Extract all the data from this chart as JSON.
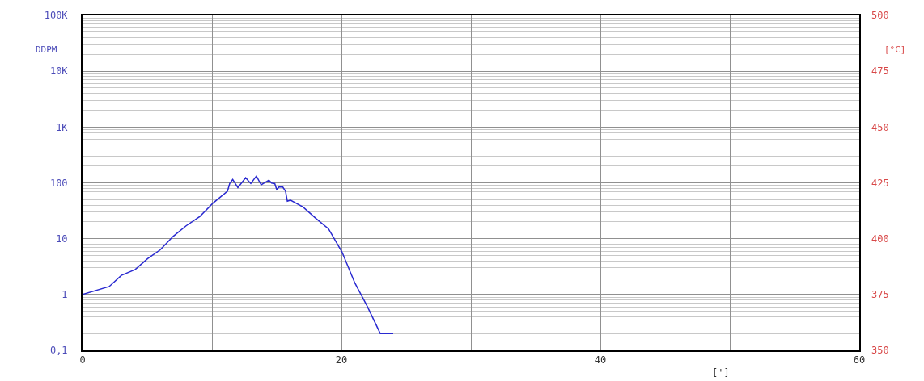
{
  "chart_data": {
    "type": "line",
    "ylabel": "DDPM",
    "y2label": "[°C]",
    "xlabel": "[']",
    "x": [
      0,
      2.06,
      3.0,
      4.07,
      5.03,
      6.0,
      7.0,
      8.0,
      9.07,
      10.06,
      11.2,
      11.37,
      11.6,
      12.0,
      12.6,
      13.0,
      13.43,
      13.8,
      14.4,
      14.6,
      14.85,
      15.0,
      15.2,
      15.47,
      15.68,
      15.82,
      16.05,
      17.03,
      18.03,
      19.0,
      20.04,
      21.04,
      22.0,
      23.0,
      24.0
    ],
    "series": [
      {
        "color": "#2a2ad0",
        "values": [
          1,
          1.39,
          2.2,
          2.8,
          4.4,
          6.3,
          11,
          17,
          25,
          43,
          71,
          97,
          115,
          82,
          123,
          97,
          132,
          92,
          112,
          99,
          97,
          76,
          85,
          84,
          71,
          47,
          49,
          37,
          23,
          15,
          5.8,
          1.6,
          0.61,
          0.2,
          0.2
        ]
      }
    ],
    "log": "y",
    "grid": true,
    "marker": "none",
    "line_style": "solid",
    "xlim": [
      0,
      60
    ],
    "xticks": [
      0,
      {
        "value": 10,
        "label": null
      },
      20,
      {
        "value": 30,
        "label": null
      },
      40,
      {
        "value": 50,
        "label": null
      },
      60
    ],
    "ylim": [
      0.1,
      100000
    ],
    "yticks": [
      {
        "value": 0.1,
        "label": "0,1"
      },
      1,
      10,
      100,
      {
        "value": 1000,
        "label": "1K"
      },
      {
        "value": 10000,
        "label": "10K"
      },
      {
        "value": 100000,
        "label": "100K"
      }
    ],
    "y2lim": [
      350,
      500
    ],
    "y2ticks": [
      350,
      375,
      400,
      425,
      450,
      475,
      500
    ]
  }
}
